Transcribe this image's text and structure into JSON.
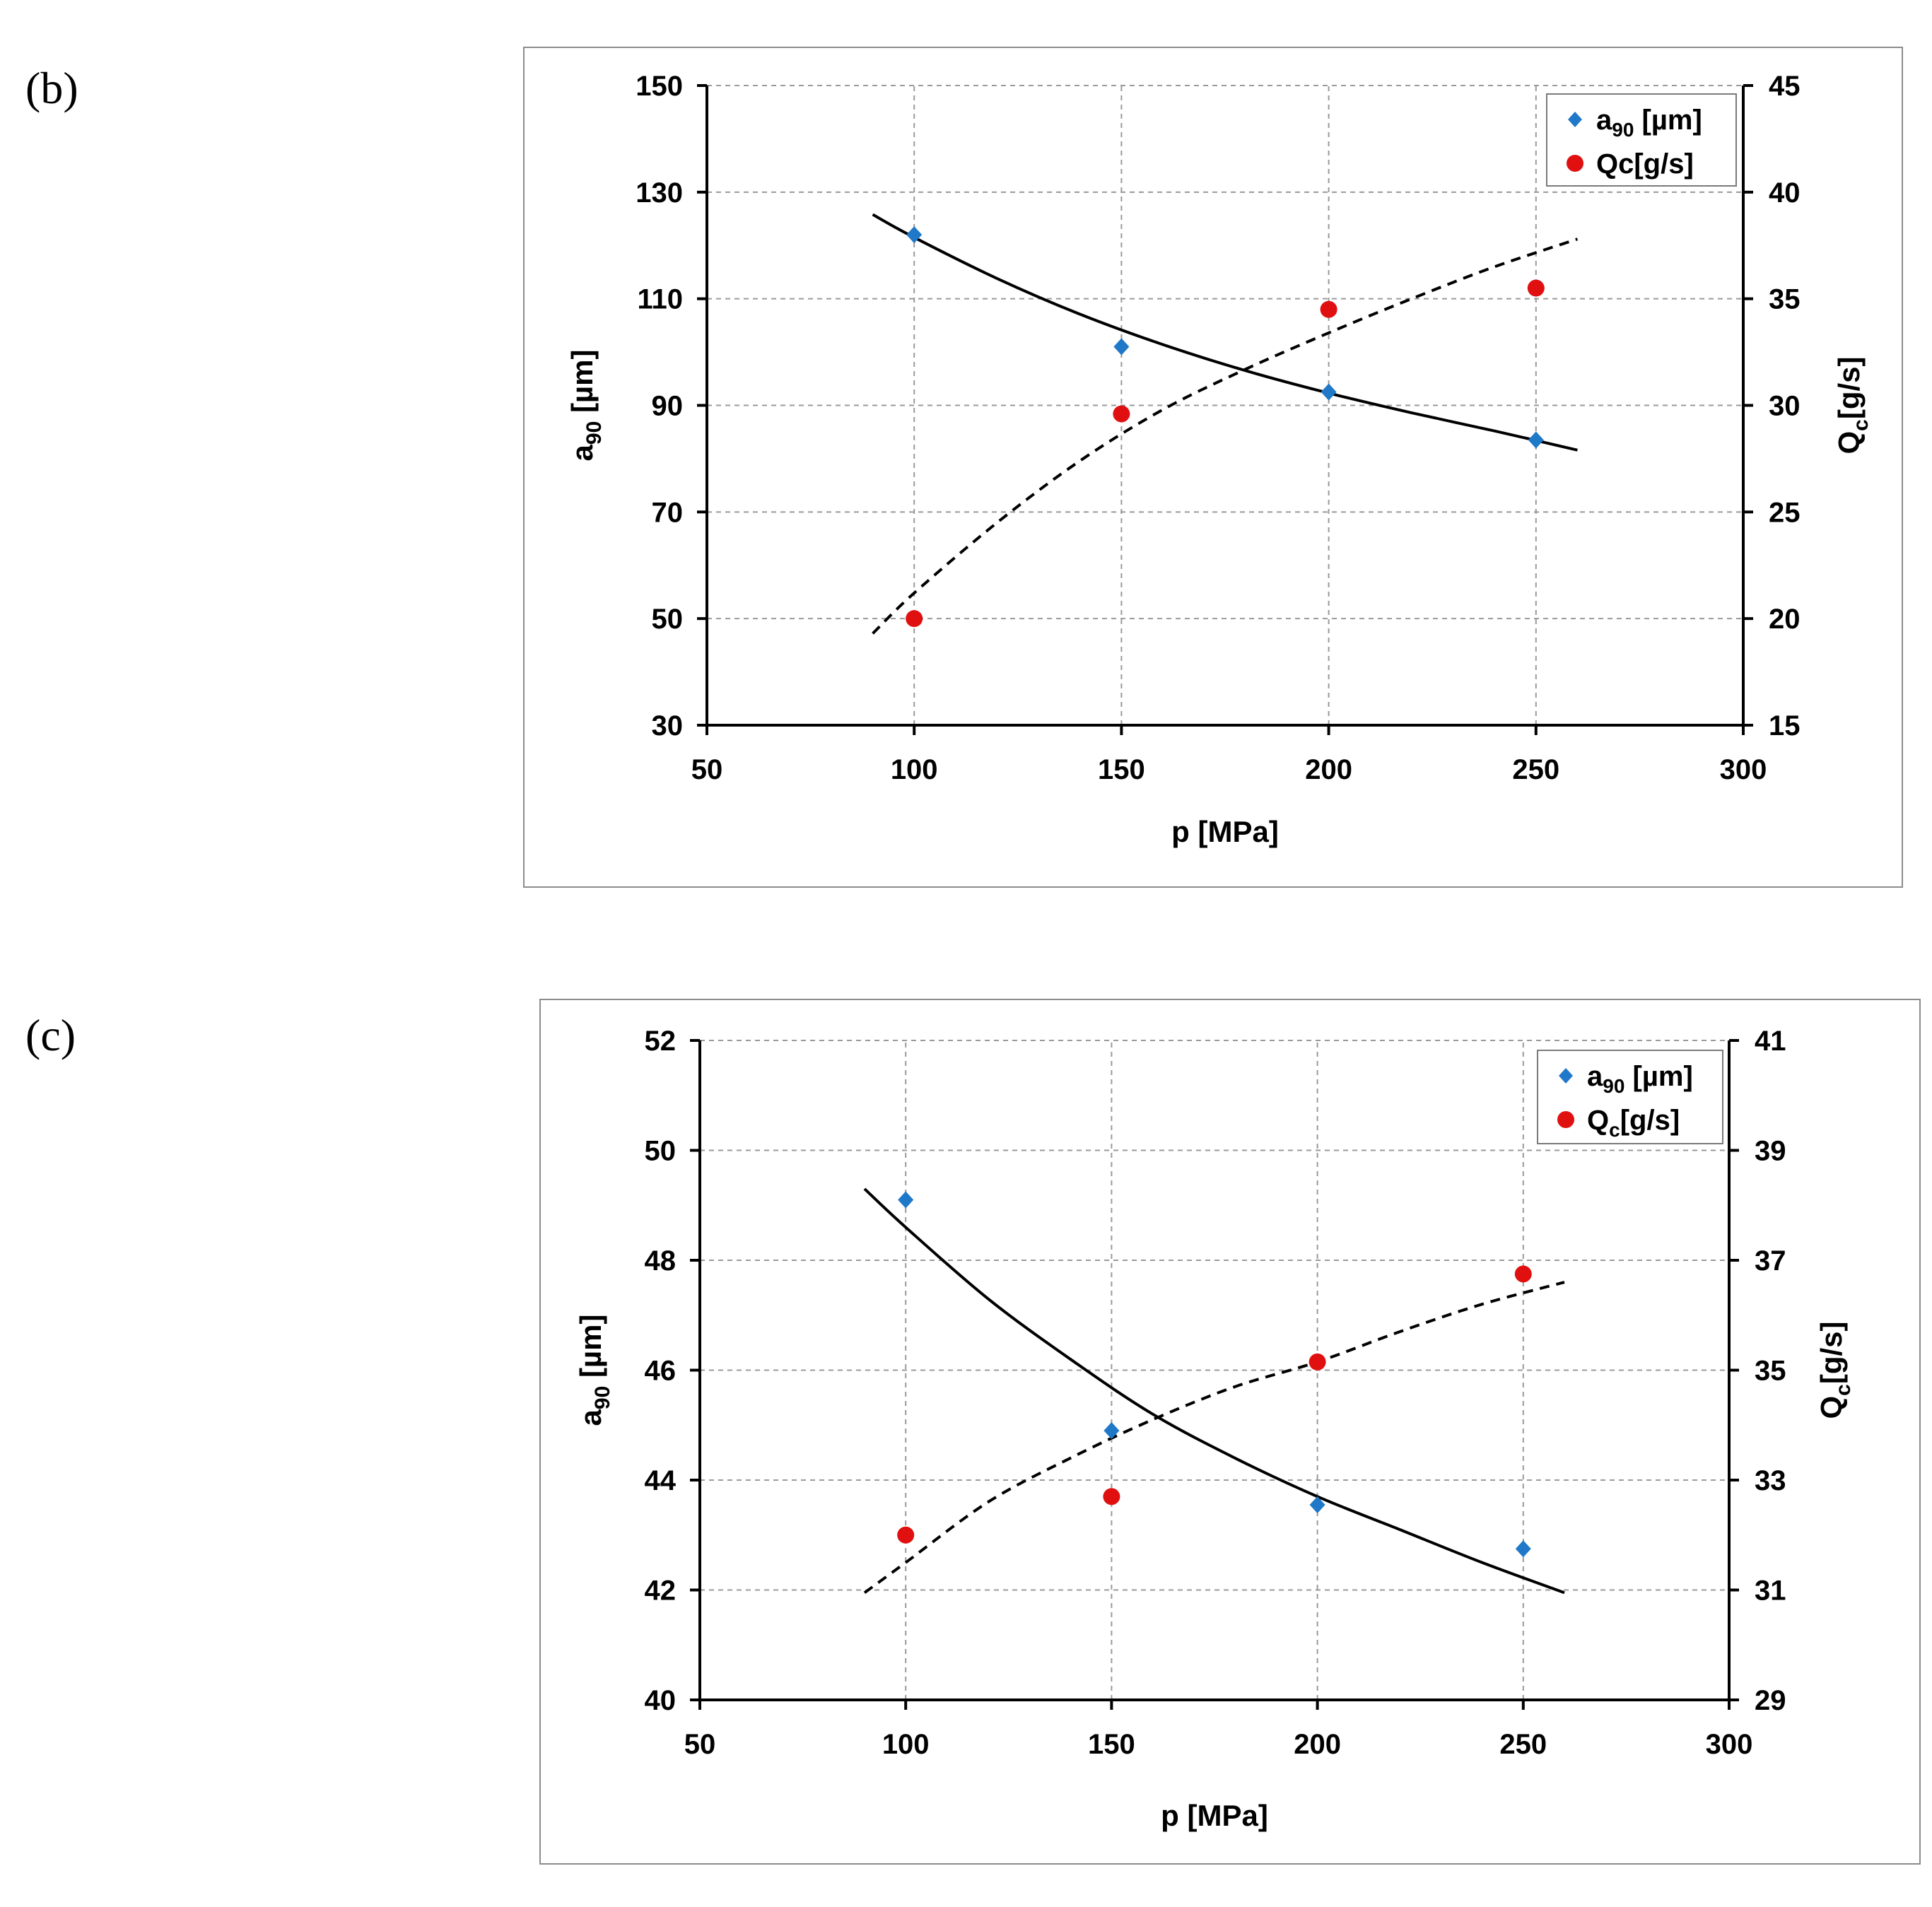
{
  "panels": {
    "b": {
      "label": "(b)"
    },
    "c": {
      "label": "(c)"
    }
  },
  "chart_data": [
    {
      "id": "b",
      "type": "scatter",
      "xlabel": "p [MPa]",
      "ylabel_left_main": "a",
      "ylabel_left_sub": "90",
      "ylabel_left_rest": " [µm]",
      "ylabel_right_main": "Q",
      "ylabel_right_sub": "c",
      "ylabel_right_rest": "[g/s]",
      "xlim": [
        50,
        300
      ],
      "xticks": [
        50,
        100,
        150,
        200,
        250,
        300
      ],
      "ylim_left": [
        30,
        150
      ],
      "yticks_left": [
        30,
        50,
        70,
        90,
        110,
        130,
        150
      ],
      "ylim_right": [
        15,
        45
      ],
      "yticks_right": [
        15,
        20,
        25,
        30,
        35,
        40,
        45
      ],
      "grid": true,
      "legend_position": "top-right",
      "legend": [
        {
          "main": "a",
          "sub": "90",
          "rest": "  [µm]"
        },
        {
          "main": "Qc[g/s]",
          "sub": "",
          "rest": ""
        }
      ],
      "series": [
        {
          "name": "a90 [µm]",
          "axis": "left",
          "marker": "diamond",
          "color": "#1f78c8",
          "x": [
            100,
            150,
            200,
            250
          ],
          "y": [
            122,
            101,
            92.5,
            83.5
          ]
        },
        {
          "name": "Qc[g/s]",
          "axis": "right",
          "marker": "circle",
          "color": "#e01010",
          "x": [
            100,
            150,
            200,
            250
          ],
          "y": [
            20,
            29.6,
            34.5,
            35.5
          ]
        }
      ],
      "trendlines": [
        {
          "axis": "left",
          "style": "solid",
          "x": [
            90,
            100,
            120,
            140,
            160,
            180,
            200,
            220,
            240,
            260
          ],
          "y": [
            125.8,
            121.5,
            113.8,
            107.1,
            101.4,
            96.5,
            92.3,
            88.6,
            85.2,
            81.6
          ]
        },
        {
          "axis": "right",
          "style": "dashed",
          "x": [
            90,
            100,
            120,
            140,
            160,
            180,
            200,
            220,
            240,
            260
          ],
          "y": [
            19.3,
            21.2,
            24.5,
            27.4,
            29.8,
            31.7,
            33.4,
            35.0,
            36.5,
            37.8
          ]
        }
      ]
    },
    {
      "id": "c",
      "type": "scatter",
      "xlabel": "p [MPa]",
      "ylabel_left_main": "a",
      "ylabel_left_sub": "90",
      "ylabel_left_rest": " [µm]",
      "ylabel_right_main": "Q",
      "ylabel_right_sub": "c",
      "ylabel_right_rest": "[g/s]",
      "xlim": [
        50,
        300
      ],
      "xticks": [
        50,
        100,
        150,
        200,
        250,
        300
      ],
      "ylim_left": [
        40,
        52
      ],
      "yticks_left": [
        40,
        42,
        44,
        46,
        48,
        50,
        52
      ],
      "ylim_right": [
        29,
        41
      ],
      "yticks_right": [
        29,
        31,
        33,
        35,
        37,
        39,
        41
      ],
      "grid": true,
      "legend_position": "top-right",
      "legend": [
        {
          "main": "a",
          "sub": "90",
          "rest": " [µm]"
        },
        {
          "main": "Q",
          "sub": "c",
          "rest": "[g/s]"
        }
      ],
      "series": [
        {
          "name": "a90 [µm]",
          "axis": "left",
          "marker": "diamond",
          "color": "#1f78c8",
          "x": [
            100,
            150,
            200,
            250
          ],
          "y": [
            49.1,
            44.9,
            43.55,
            42.75
          ]
        },
        {
          "name": "Qc[g/s]",
          "axis": "right",
          "marker": "circle",
          "color": "#e01010",
          "x": [
            100,
            150,
            200,
            250
          ],
          "y": [
            32.0,
            32.7,
            35.15,
            36.75
          ]
        }
      ],
      "trendlines": [
        {
          "axis": "left",
          "style": "solid",
          "x": [
            90,
            100,
            120,
            140,
            160,
            180,
            200,
            220,
            240,
            260
          ],
          "y": [
            49.3,
            48.6,
            47.3,
            46.2,
            45.2,
            44.4,
            43.7,
            43.1,
            42.5,
            41.95
          ]
        },
        {
          "axis": "right",
          "style": "dashed",
          "x": [
            90,
            100,
            120,
            140,
            160,
            180,
            200,
            220,
            240,
            260
          ],
          "y": [
            30.95,
            31.5,
            32.6,
            33.4,
            34.1,
            34.7,
            35.15,
            35.7,
            36.2,
            36.6
          ]
        }
      ]
    }
  ]
}
